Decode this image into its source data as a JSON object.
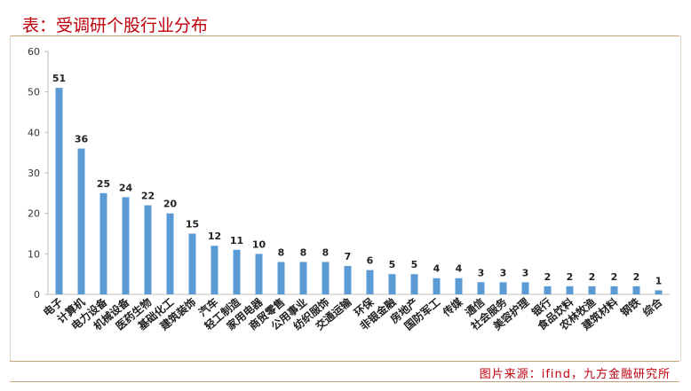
{
  "header": {
    "title": "表：受调研个股行业分布"
  },
  "footer": {
    "source": "图片来源：ifind，九方金融研究所"
  },
  "colors": {
    "bar": "#5b9bd5",
    "title": "#c0000b",
    "border": "#c9a27a"
  },
  "chart_data": {
    "type": "bar",
    "title": "",
    "xlabel": "",
    "ylabel": "",
    "ylim": [
      0,
      60
    ],
    "yticks": [
      0,
      10,
      20,
      30,
      40,
      50,
      60
    ],
    "grid": false,
    "categories": [
      "电子",
      "计算机",
      "电力设备",
      "机械设备",
      "医药生物",
      "基础化工",
      "建筑装饰",
      "汽车",
      "轻工制造",
      "家用电器",
      "商贸零售",
      "公用事业",
      "纺织服饰",
      "交通运输",
      "环保",
      "非银金融",
      "房地产",
      "国防军工",
      "传媒",
      "通信",
      "社会服务",
      "美容护理",
      "银行",
      "食品饮料",
      "农林牧渔",
      "建筑材料",
      "钢铁",
      "综合"
    ],
    "values": [
      51,
      36,
      25,
      24,
      22,
      20,
      15,
      12,
      11,
      10,
      8,
      8,
      8,
      7,
      6,
      5,
      5,
      4,
      4,
      3,
      3,
      3,
      2,
      2,
      2,
      2,
      2,
      1
    ]
  }
}
